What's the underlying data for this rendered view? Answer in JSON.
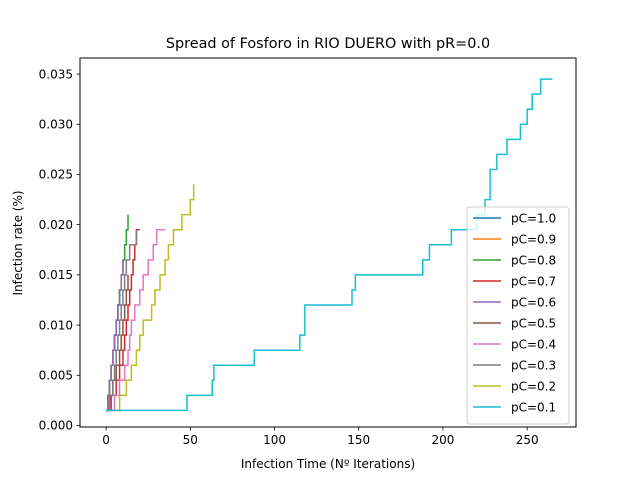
{
  "chart_data": {
    "type": "line",
    "title": "Spread of Fosforo in RIO DUERO with pR=0.0",
    "xlabel": "Infection Time (Nº Iterations)",
    "ylabel": "Infection rate (%)",
    "xlim": [
      -15.5,
      279
    ],
    "ylim": [
      -0.00015,
      0.0366
    ],
    "xticks": [
      0,
      50,
      100,
      150,
      200,
      250
    ],
    "xtick_labels": [
      "0",
      "50",
      "100",
      "150",
      "200",
      "250"
    ],
    "yticks": [
      0.0,
      0.005,
      0.01,
      0.015,
      0.02,
      0.025,
      0.03,
      0.035
    ],
    "ytick_labels": [
      "0.000",
      "0.005",
      "0.010",
      "0.015",
      "0.020",
      "0.025",
      "0.030",
      "0.035"
    ],
    "grid": false,
    "legend_position": "right",
    "series": [
      {
        "name": "pC=1.0",
        "color": "#1f77b4",
        "x": [
          0,
          1,
          2,
          3,
          4,
          5,
          6,
          7,
          8
        ],
        "y": [
          0.0015,
          0.003,
          0.0045,
          0.006,
          0.0075,
          0.009,
          0.0105,
          0.012,
          0.0135
        ]
      },
      {
        "name": "pC=0.9",
        "color": "#ff7f0e",
        "x": [
          0,
          1,
          2,
          3,
          4,
          5,
          6
        ],
        "y": [
          0.0015,
          0.003,
          0.0045,
          0.006,
          0.0075,
          0.009,
          0.0105
        ]
      },
      {
        "name": "pC=0.8",
        "color": "#2ca02c",
        "x": [
          0,
          1,
          2,
          3,
          4,
          5,
          6,
          7,
          8,
          9,
          10,
          11,
          12,
          13
        ],
        "y": [
          0.0015,
          0.003,
          0.0045,
          0.006,
          0.0075,
          0.009,
          0.0105,
          0.012,
          0.0135,
          0.015,
          0.0165,
          0.018,
          0.0195,
          0.021
        ]
      },
      {
        "name": "pC=0.7",
        "color": "#d62728",
        "x": [
          0,
          3,
          6,
          8,
          10,
          11,
          12,
          13,
          14,
          15,
          16,
          17,
          18,
          20
        ],
        "y": [
          0.0015,
          0.003,
          0.0045,
          0.006,
          0.0075,
          0.009,
          0.0105,
          0.012,
          0.0135,
          0.015,
          0.0165,
          0.018,
          0.0195,
          0.0195
        ]
      },
      {
        "name": "pC=0.6",
        "color": "#9467bd",
        "x": [
          0,
          1,
          2,
          3,
          4,
          5,
          6,
          7,
          8,
          9,
          10
        ],
        "y": [
          0.0015,
          0.003,
          0.0045,
          0.006,
          0.0075,
          0.009,
          0.0105,
          0.012,
          0.0135,
          0.015,
          0.0165
        ]
      },
      {
        "name": "pC=0.5",
        "color": "#8c564b",
        "x": [
          0,
          2,
          4,
          6,
          8,
          9,
          10,
          11,
          12,
          13
        ],
        "y": [
          0.0015,
          0.003,
          0.0045,
          0.006,
          0.0075,
          0.009,
          0.0105,
          0.012,
          0.0135,
          0.015
        ]
      },
      {
        "name": "pC=0.4",
        "color": "#e377c2",
        "x": [
          0,
          5,
          8,
          11,
          13,
          14,
          15,
          17,
          20,
          22,
          25,
          28,
          30,
          35
        ],
        "y": [
          0.0015,
          0.003,
          0.0045,
          0.006,
          0.0075,
          0.009,
          0.0105,
          0.012,
          0.0135,
          0.015,
          0.0165,
          0.018,
          0.0195,
          0.0195
        ]
      },
      {
        "name": "pC=0.3",
        "color": "#7f7f7f",
        "x": [
          0,
          2,
          4,
          5,
          6,
          7,
          8,
          9,
          10,
          11,
          12,
          14,
          18
        ],
        "y": [
          0.0015,
          0.003,
          0.0045,
          0.006,
          0.0075,
          0.009,
          0.0105,
          0.012,
          0.0135,
          0.015,
          0.0165,
          0.018,
          0.0195
        ]
      },
      {
        "name": "pC=0.2",
        "color": "#bcbd22",
        "x": [
          0,
          8,
          12,
          15,
          18,
          20,
          22,
          25,
          27,
          29,
          32,
          35,
          37,
          40,
          45,
          48,
          50,
          52
        ],
        "y": [
          0.0015,
          0.003,
          0.0045,
          0.006,
          0.0075,
          0.009,
          0.0105,
          0.0105,
          0.012,
          0.0135,
          0.015,
          0.0165,
          0.018,
          0.0195,
          0.021,
          0.021,
          0.0225,
          0.024
        ]
      },
      {
        "name": "pC=0.1",
        "color": "#17becf",
        "x": [
          0,
          47,
          48,
          60,
          63,
          64,
          88,
          113,
          115,
          118,
          145,
          146,
          148,
          188,
          192,
          197,
          205,
          220,
          225,
          228,
          232,
          238,
          240,
          245,
          246,
          250,
          253,
          256,
          258,
          261,
          265
        ],
        "y": [
          0.0015,
          0.0015,
          0.003,
          0.003,
          0.0045,
          0.006,
          0.0075,
          0.0075,
          0.009,
          0.012,
          0.012,
          0.0135,
          0.015,
          0.0165,
          0.018,
          0.018,
          0.0195,
          0.021,
          0.0225,
          0.0255,
          0.027,
          0.0285,
          0.0285,
          0.0285,
          0.03,
          0.0315,
          0.033,
          0.033,
          0.0345,
          0.0345,
          0.0345
        ]
      }
    ]
  }
}
